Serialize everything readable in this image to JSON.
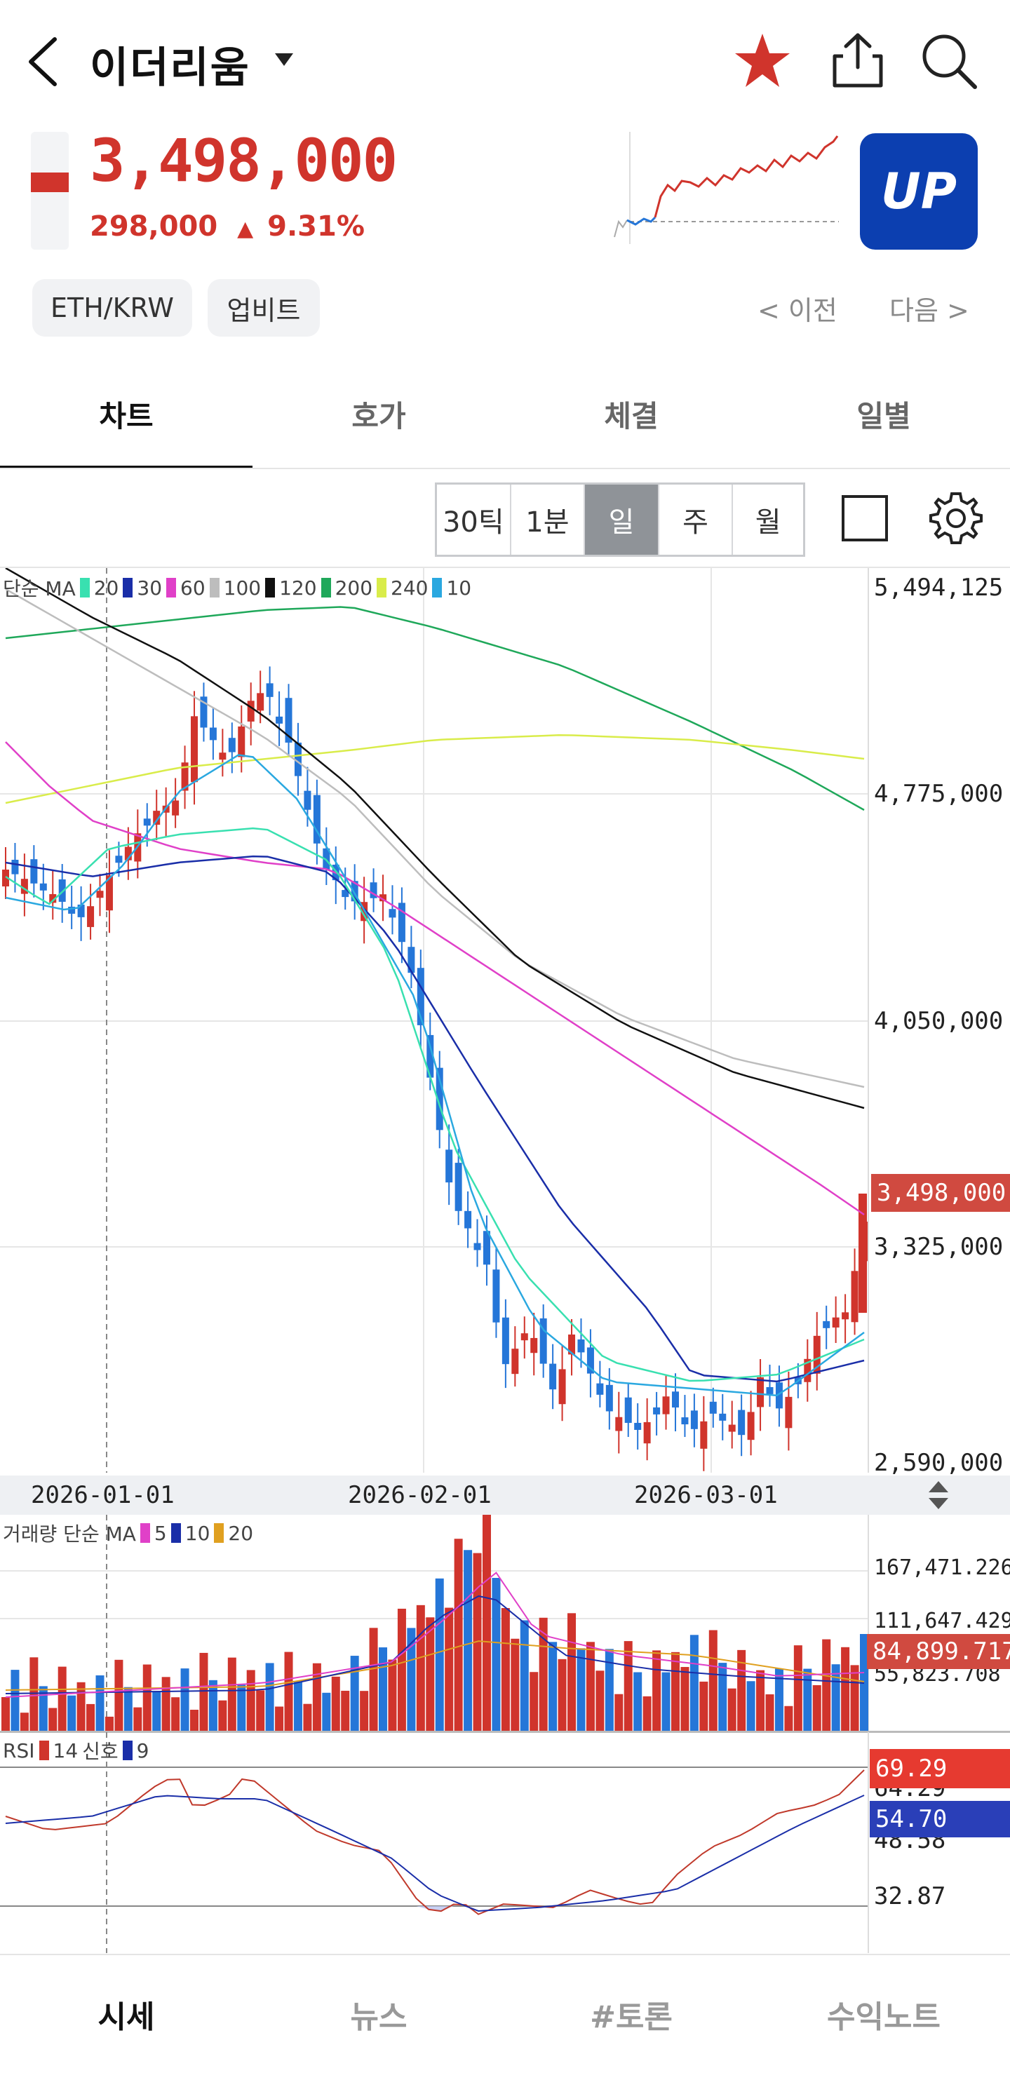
{
  "header": {
    "title": "이더리움",
    "price": "3,498,000",
    "change_amount": "298,000",
    "change_arrow": "▲",
    "change_pct": "9.31%",
    "exchange_logo_text": "UP",
    "pair_pill": "ETH/KRW",
    "exchange_pill": "업비트",
    "prev_label": "< 이전",
    "next_label": "다음 >"
  },
  "tabs": [
    "차트",
    "호가",
    "체결",
    "일별"
  ],
  "intervals": [
    "30틱",
    "1분",
    "일",
    "주",
    "월"
  ],
  "price_chart": {
    "legend_prefix": "단순 MA",
    "ma": [
      {
        "label": "20",
        "color": "#39e0b0"
      },
      {
        "label": "30",
        "color": "#1a2ea8"
      },
      {
        "label": "60",
        "color": "#e040c8"
      },
      {
        "label": "100",
        "color": "#bdbdbd"
      },
      {
        "label": "120",
        "color": "#111111"
      },
      {
        "label": "200",
        "color": "#1fa85a"
      },
      {
        "label": "240",
        "color": "#d9ec4a"
      },
      {
        "label": "10",
        "color": "#2aa8e0"
      }
    ],
    "y_ticks": [
      "5,494,125",
      "4,775,000",
      "4,050,000",
      "3,325,000",
      "2,590,000"
    ],
    "current_price_tag": "3,498,000"
  },
  "x_axis": {
    "ticks": [
      "2026-01-01",
      "2026-02-01",
      "2026-03-01"
    ]
  },
  "volume_chart": {
    "legend_prefix": "거래량 단순 MA",
    "ma": [
      {
        "label": "5",
        "color": "#e040c8"
      },
      {
        "label": "10",
        "color": "#1a2ea8"
      },
      {
        "label": "20",
        "color": "#e0a020"
      }
    ],
    "y_ticks": [
      "167,471.226",
      "111,647.429",
      "55,823.708"
    ],
    "current_tag": "84,899.717"
  },
  "rsi_chart": {
    "legend_prefix": "RSI",
    "rsi_label": "14",
    "signal_label": "신호",
    "signal_period": "9",
    "y_ticks": [
      "64.29",
      "48.58",
      "32.87"
    ],
    "rsi_tag": "69.29",
    "signal_tag": "54.70"
  },
  "bottom_nav": [
    "시세",
    "뉴스",
    "#토론",
    "수익노트"
  ],
  "colors": {
    "up": "#d0342c",
    "down": "#2576d8",
    "brand": "#0c3fb0"
  },
  "icons": [
    "back-arrow-icon",
    "dropdown-caret-icon",
    "star-icon",
    "share-icon",
    "search-icon",
    "square-icon",
    "gear-icon",
    "updown-arrows-icon"
  ]
}
